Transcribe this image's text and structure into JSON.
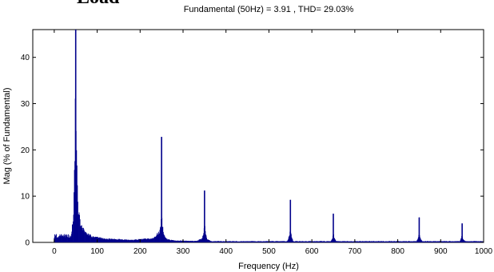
{
  "page": {
    "clipped_heading": "Load"
  },
  "chart_data": {
    "type": "bar",
    "title": "Fundamental (50Hz) = 3.91 , THD= 29.03%",
    "xlabel": "Frequency (Hz)",
    "ylabel": "Mag (% of Fundamental)",
    "xlim": [
      -50,
      1000
    ],
    "ylim": [
      0,
      46
    ],
    "xticks": [
      0,
      100,
      200,
      300,
      400,
      500,
      600,
      700,
      800,
      900,
      1000
    ],
    "yticks": [
      0,
      10,
      20,
      30,
      40
    ],
    "grid": false,
    "bar_color": "#00008B",
    "background": "#ffffff",
    "peaks": [
      {
        "freq": 50,
        "mag": 46,
        "shoulders": [
          [
            40,
            2.5
          ],
          [
            45,
            6
          ],
          [
            48,
            21
          ],
          [
            50,
            42.5
          ],
          [
            52,
            21
          ],
          [
            55,
            9
          ],
          [
            62,
            4
          ],
          [
            75,
            2.3
          ],
          [
            90,
            1.4
          ],
          [
            120,
            0.9
          ],
          [
            180,
            0.6
          ],
          [
            230,
            1.0
          ],
          [
            245,
            2.6
          ]
        ]
      },
      {
        "freq": 250,
        "mag": 22.8,
        "shoulders": [
          [
            245,
            2.6
          ],
          [
            248,
            4
          ],
          [
            250,
            10
          ],
          [
            252,
            4
          ],
          [
            256,
            1.6
          ],
          [
            262,
            0.8
          ],
          [
            280,
            0.45
          ],
          [
            330,
            0.35
          ],
          [
            344,
            0.9
          ],
          [
            348,
            2.5
          ]
        ]
      },
      {
        "freq": 350,
        "mag": 11.2,
        "shoulders": [
          [
            348,
            2.5
          ],
          [
            350,
            5
          ],
          [
            352,
            2.5
          ],
          [
            356,
            0.8
          ],
          [
            365,
            0.3
          ]
        ]
      },
      {
        "freq": 550,
        "mag": 9.2,
        "shoulders": [
          [
            544,
            0.5
          ],
          [
            548,
            1.8
          ],
          [
            550,
            3.9
          ],
          [
            552,
            1.8
          ],
          [
            556,
            0.5
          ]
        ]
      },
      {
        "freq": 650,
        "mag": 6.2,
        "shoulders": [
          [
            645,
            0.4
          ],
          [
            648,
            1.2
          ],
          [
            650,
            2.6
          ],
          [
            652,
            1.2
          ],
          [
            656,
            0.4
          ]
        ]
      },
      {
        "freq": 850,
        "mag": 5.4,
        "shoulders": [
          [
            845,
            0.5
          ],
          [
            848,
            1.2
          ],
          [
            850,
            2.4
          ],
          [
            852,
            1.2
          ],
          [
            856,
            0.5
          ]
        ]
      },
      {
        "freq": 950,
        "mag": 4.1,
        "shoulders": [
          [
            945,
            0.4
          ],
          [
            948,
            1.0
          ],
          [
            950,
            1.9
          ],
          [
            952,
            1.0
          ],
          [
            956,
            0.4
          ]
        ]
      }
    ],
    "dc_region": {
      "from": 0,
      "to": 40,
      "mag": 1.8
    },
    "noise_floor": 0.3,
    "bin_width_hz": 1
  }
}
